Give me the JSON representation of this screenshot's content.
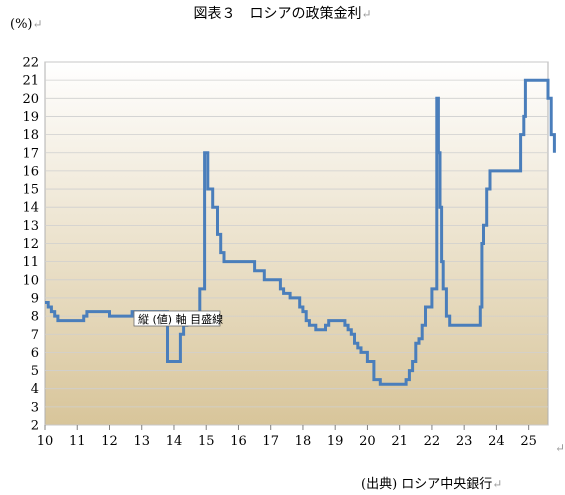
{
  "title": "図表３　ロシアの政策金利",
  "unit_label": "(%)",
  "source": "(出典) ロシア中央銀行",
  "return_mark": "↵",
  "colors": {
    "line": "#4a7ebb",
    "grid": "#cfcfcf",
    "plot_bg_top": "#ffffff",
    "plot_bg_bottom": "#d8c59a"
  },
  "chart_data": {
    "type": "line",
    "title": "図表３　ロシアの政策金利",
    "ylabel": "(%)",
    "xlabel": "",
    "xlim": [
      10,
      25.6
    ],
    "ylim": [
      2,
      22
    ],
    "grid": true,
    "x_ticks": [
      10,
      11,
      12,
      13,
      14,
      15,
      16,
      17,
      18,
      19,
      20,
      21,
      22,
      23,
      24,
      25
    ],
    "y_ticks": [
      2,
      3,
      4,
      5,
      6,
      7,
      8,
      9,
      10,
      11,
      12,
      13,
      14,
      15,
      16,
      17,
      18,
      19,
      20,
      21,
      22
    ],
    "annotation": "縦 (値) 軸 目盛線",
    "series": [
      {
        "step": true,
        "x": [
          10.0,
          10.1,
          10.2,
          10.3,
          10.4,
          10.45,
          10.5,
          11.2,
          11.3,
          11.5,
          12.0,
          12.6,
          12.7,
          13.8,
          14.2,
          14.3,
          14.4,
          14.8,
          14.95,
          15.05,
          15.2,
          15.35,
          15.45,
          15.55,
          16.5,
          16.8,
          17.3,
          17.4,
          17.6,
          17.9,
          18.0,
          18.1,
          18.2,
          18.4,
          18.5,
          18.7,
          18.8,
          19.3,
          19.4,
          19.5,
          19.6,
          19.7,
          19.8,
          20.0,
          20.2,
          20.4,
          20.5,
          21.2,
          21.3,
          21.4,
          21.5,
          21.6,
          21.7,
          21.8,
          22.0,
          22.15,
          22.2,
          22.25,
          22.3,
          22.35,
          22.45,
          22.55,
          22.7,
          23.5,
          23.55,
          23.6,
          23.7,
          23.8,
          23.9,
          24.2,
          24.75,
          24.85,
          24.9,
          25.0,
          25.6,
          25.7,
          25.8
        ],
        "y": [
          8.75,
          8.5,
          8.25,
          8.0,
          7.75,
          7.75,
          7.75,
          8.0,
          8.25,
          8.25,
          8.0,
          8.0,
          8.25,
          5.5,
          7.0,
          7.5,
          8.0,
          9.5,
          17.0,
          15.0,
          14.0,
          12.5,
          11.5,
          11.0,
          10.5,
          10.0,
          9.5,
          9.25,
          9.0,
          8.5,
          8.25,
          7.75,
          7.5,
          7.25,
          7.25,
          7.5,
          7.75,
          7.5,
          7.25,
          7.0,
          6.5,
          6.25,
          6.0,
          5.5,
          4.5,
          4.25,
          4.25,
          4.5,
          5.0,
          5.5,
          6.5,
          6.75,
          7.5,
          8.5,
          9.5,
          20.0,
          17.0,
          14.0,
          11.0,
          9.5,
          8.0,
          7.5,
          7.5,
          8.5,
          12.0,
          13.0,
          15.0,
          16.0,
          16.0,
          16.0,
          18.0,
          19.0,
          21.0,
          21.0,
          20.0,
          18.0,
          17.0
        ]
      }
    ]
  }
}
